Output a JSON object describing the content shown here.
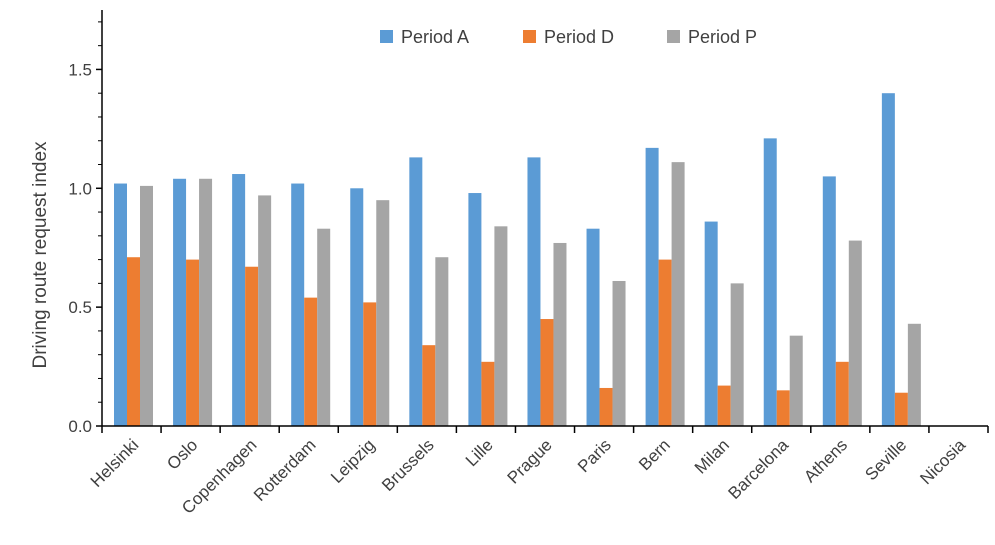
{
  "chart_data": {
    "type": "bar",
    "title": "",
    "xlabel": "",
    "ylabel": "Driving route request index",
    "ylim": [
      0,
      1.75
    ],
    "yticks": [
      "0.0",
      "0.5",
      "1.0",
      "1.5"
    ],
    "ytick_values": [
      0,
      0.5,
      1.0,
      1.5
    ],
    "grid": false,
    "legend_position": "top",
    "categories": [
      "Helsinki",
      "Oslo",
      "Copenhagen",
      "Rotterdam",
      "Leipzig",
      "Brussels",
      "Lille",
      "Prague",
      "Paris",
      "Bern",
      "Milan",
      "Barcelona",
      "Athens",
      "Seville",
      "Nicosia"
    ],
    "series": [
      {
        "name": "Period A",
        "color": "#5B9BD5",
        "values": [
          1.02,
          1.04,
          1.06,
          1.02,
          1.0,
          1.13,
          0.98,
          1.13,
          0.83,
          1.17,
          0.86,
          1.21,
          1.05,
          1.4,
          null
        ]
      },
      {
        "name": "Period D",
        "color": "#ED7D31",
        "values": [
          0.71,
          0.7,
          0.67,
          0.54,
          0.52,
          0.34,
          0.27,
          0.45,
          0.16,
          0.7,
          0.17,
          0.15,
          0.27,
          0.14,
          null
        ]
      },
      {
        "name": "Period P",
        "color": "#A5A5A5",
        "values": [
          1.01,
          1.04,
          0.97,
          0.83,
          0.95,
          0.71,
          0.84,
          0.77,
          0.61,
          1.11,
          0.6,
          0.38,
          0.78,
          0.43,
          null
        ]
      }
    ]
  }
}
